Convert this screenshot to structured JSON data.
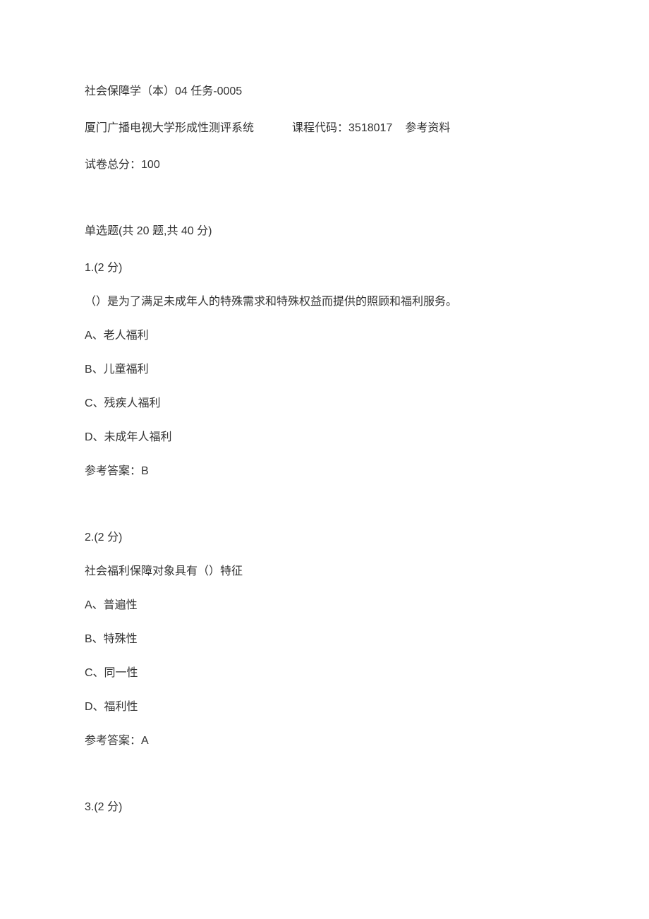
{
  "header": {
    "title": "社会保障学（本）04 任务-0005"
  },
  "info": {
    "system": "厦门广播电视大学形成性测评系统",
    "course_code_label": "课程代码：",
    "course_code": "3518017",
    "reference_label": "参考资料"
  },
  "total_score": {
    "label": "试卷总分：",
    "value": "100"
  },
  "section": {
    "header": "单选题(共 20 题,共 40 分)"
  },
  "questions": [
    {
      "number": "1.(2 分)",
      "text": "（）是为了满足未成年人的特殊需求和特殊权益而提供的照顾和福利服务。",
      "options": [
        "A、老人福利",
        "B、儿童福利",
        "C、残疾人福利",
        "D、未成年人福利"
      ],
      "answer_label": "参考答案：",
      "answer": "B"
    },
    {
      "number": "2.(2 分)",
      "text": "社会福利保障对象具有（）特征",
      "options": [
        "A、普遍性",
        "B、特殊性",
        "C、同一性",
        "D、福利性"
      ],
      "answer_label": "参考答案：",
      "answer": "A"
    },
    {
      "number": "3.(2 分)",
      "text": "",
      "options": [],
      "answer_label": "",
      "answer": ""
    }
  ]
}
